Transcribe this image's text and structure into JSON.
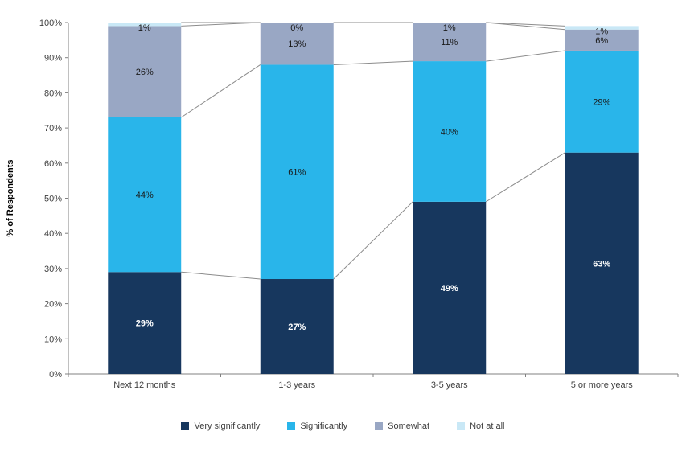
{
  "chart_data": {
    "type": "bar",
    "stacked": true,
    "title": "",
    "xlabel": "",
    "ylabel": "% of Respondents",
    "ylim": [
      0,
      100
    ],
    "ytick_step": 10,
    "ytick_suffix": "%",
    "grid": false,
    "legend_position": "bottom",
    "categories": [
      "Next 12 months",
      "1-3 years",
      "3-5 years",
      "5 or more years"
    ],
    "series": [
      {
        "name": "Very significantly",
        "color": "#17375E",
        "label_color": "#FFFFFF",
        "values": [
          29,
          27,
          49,
          63
        ]
      },
      {
        "name": "Significantly",
        "color": "#29B5EA",
        "label_color": "#1A1A1A",
        "values": [
          44,
          61,
          40,
          29
        ]
      },
      {
        "name": "Somewhat",
        "color": "#99A7C4",
        "label_color": "#1A1A1A",
        "values": [
          26,
          13,
          11,
          6
        ]
      },
      {
        "name": "Not at all",
        "color": "#C9E8F6",
        "label_color": "#1A1A1A",
        "values": [
          1,
          0,
          1,
          1
        ]
      }
    ],
    "connector_line_color": "#8C8C8C",
    "axis_color": "#808080",
    "tick_label_color": "#404040"
  }
}
